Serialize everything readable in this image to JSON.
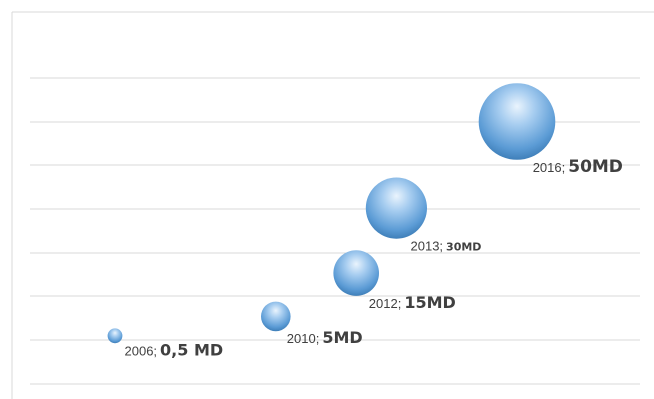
{
  "chart_data": {
    "type": "bubble",
    "grid": true,
    "legend": "none",
    "points": [
      {
        "year": "2006",
        "sep": ";",
        "value_text": "0,5 MD",
        "x": 2006,
        "y": 0.5,
        "size": 0.5,
        "value_font": 16
      },
      {
        "year": "2010",
        "sep": ";",
        "value_text": "5MD",
        "x": 2010,
        "y": 5,
        "size": 5,
        "value_font": 16
      },
      {
        "year": "2012",
        "sep": ";",
        "value_text": "15MD",
        "x": 2012,
        "y": 15,
        "size": 15,
        "value_font": 16
      },
      {
        "year": "2013",
        "sep": ";",
        "value_text": "30MD",
        "x": 2013,
        "y": 30,
        "size": 30,
        "value_font": 11
      },
      {
        "year": "2016",
        "sep": ";",
        "value_text": "50MD",
        "x": 2016,
        "y": 50,
        "size": 50,
        "value_font": 17
      }
    ],
    "bubble_color": "#5b9bd5"
  }
}
